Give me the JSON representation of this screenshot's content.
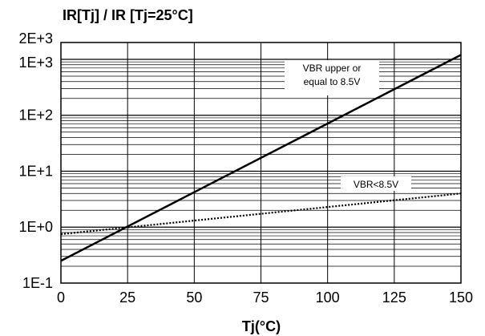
{
  "chart_data": {
    "type": "line",
    "title": "IR[Tj] / IR [Tj=25°C]",
    "xlabel": "Tj(°C)",
    "ylabel": "",
    "xlim": [
      0,
      150
    ],
    "ylim": [
      0.1,
      2000
    ],
    "yscale": "log",
    "grid": true,
    "x_ticks": [
      0,
      25,
      50,
      75,
      100,
      125,
      150
    ],
    "x_tick_labels": [
      "0",
      "25",
      "50",
      "75",
      "100",
      "125",
      "150"
    ],
    "y_ticks": [
      0.1,
      1,
      10,
      100,
      1000,
      2000
    ],
    "y_tick_labels": [
      "1E-1",
      "1E+0",
      "1E+1",
      "1E+2",
      "1E+3",
      "2E+3"
    ],
    "series": [
      {
        "name": "VBR upper or equal to 8.5V",
        "line_style": "solid",
        "x": [
          0,
          150
        ],
        "y": [
          0.25,
          1200
        ]
      },
      {
        "name": "VBR<8.5V",
        "line_style": "dotted",
        "x": [
          0,
          150
        ],
        "y": [
          0.75,
          4.0
        ]
      }
    ],
    "annotations": [
      {
        "series": 0,
        "lines": [
          "VBR upper or",
          "equal to 8.5V"
        ]
      },
      {
        "series": 1,
        "lines": [
          "VBR<8.5V"
        ]
      }
    ]
  }
}
